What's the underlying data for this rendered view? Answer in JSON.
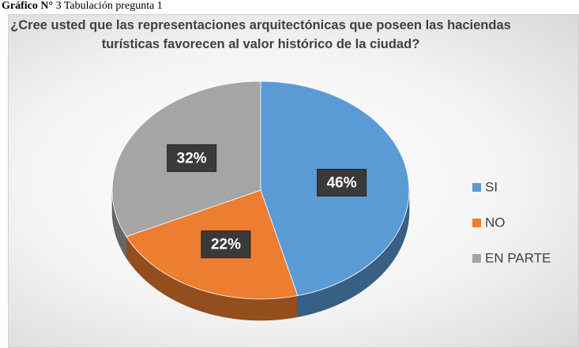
{
  "caption_label": "Gráfico N°",
  "caption": "3 Tabulación pregunta 1",
  "chart_data": {
    "type": "pie3d",
    "title": "¿Cree usted que las representaciones arquitectónicas que poseen las haciendas turísticas favorecen al valor histórico de la ciudad?",
    "categories": [
      "SI",
      "NO",
      "EN PARTE"
    ],
    "values": [
      46,
      22,
      32
    ],
    "value_labels": [
      "46%",
      "22%",
      "32%"
    ],
    "colors": [
      "#5b9bd5",
      "#ed7d31",
      "#a5a5a5"
    ],
    "legend": "right"
  }
}
